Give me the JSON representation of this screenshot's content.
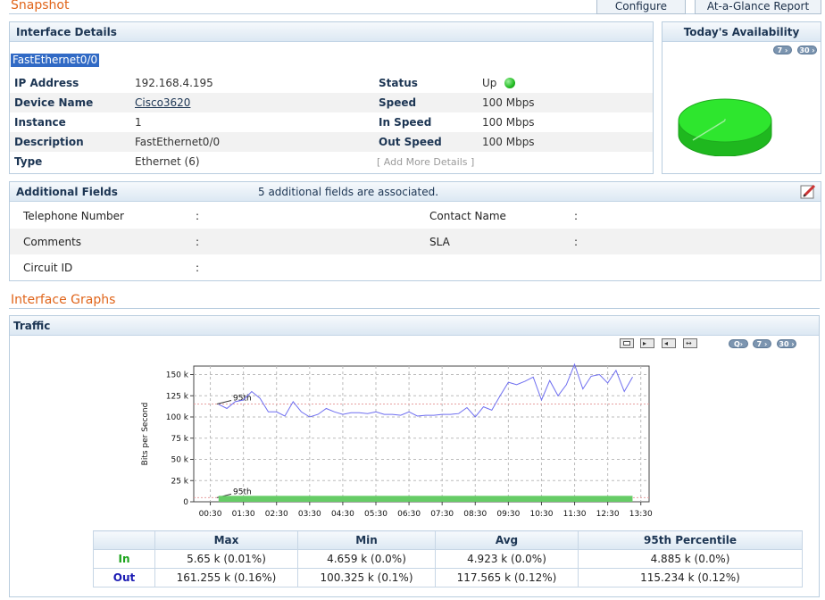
{
  "page": {
    "title": "Snapshot",
    "tabs": [
      "Configure",
      "At-a-Glance Report"
    ]
  },
  "interface_details": {
    "header": "Interface Details",
    "name": "FastEthernet0/0",
    "left": [
      {
        "label": "IP Address",
        "value": "192.168.4.195"
      },
      {
        "label": "Device Name",
        "value": "Cisco3620"
      },
      {
        "label": "Instance",
        "value": "1"
      },
      {
        "label": "Description",
        "value": "FastEthernet0/0"
      },
      {
        "label": "Type",
        "value": "Ethernet (6)"
      }
    ],
    "right": [
      {
        "label": "Status",
        "value": "Up"
      },
      {
        "label": "Speed",
        "value": "100 Mbps"
      },
      {
        "label": "In Speed",
        "value": "100 Mbps"
      },
      {
        "label": "Out Speed",
        "value": "100 Mbps"
      }
    ],
    "add_more": "[ Add More Details  ]",
    "status_color": "#22bb22"
  },
  "availability": {
    "header": "Today's Availability",
    "buttons": [
      "7",
      "30"
    ],
    "color": "#2ee62e",
    "up_percent": 100
  },
  "additional_fields": {
    "header": "Additional Fields",
    "summary": "5 additional fields are associated.",
    "rows": [
      {
        "l_label": "Telephone Number",
        "l_sep": ":",
        "r_label": "Contact Name",
        "r_sep": ":"
      },
      {
        "l_label": "Comments",
        "l_sep": ":",
        "r_label": "SLA",
        "r_sep": ":"
      },
      {
        "l_label": "Circuit ID",
        "l_sep": ":",
        "r_label": "",
        "r_sep": ""
      }
    ]
  },
  "graphs": {
    "section_title": "Interface Graphs",
    "traffic_header": "Traffic",
    "toolbar_icons": [
      "table-view-icon",
      "export-icon",
      "zoom-prev-icon",
      "zoom-fit-icon"
    ],
    "range_buttons": [
      "Q",
      "7",
      "30"
    ]
  },
  "chart_data": {
    "type": "line",
    "xlabel": "",
    "ylabel": "Bits per Second",
    "ylim": [
      0,
      160000
    ],
    "yticks": [
      {
        "value": 0,
        "label": "0"
      },
      {
        "value": 25000,
        "label": "25 k"
      },
      {
        "value": 50000,
        "label": "50 k"
      },
      {
        "value": 75000,
        "label": "75 k"
      },
      {
        "value": 100000,
        "label": "100 k"
      },
      {
        "value": 125000,
        "label": "125 k"
      },
      {
        "value": 150000,
        "label": "150 k"
      }
    ],
    "xlim": [
      "00:00",
      "13:45"
    ],
    "xticks": [
      "00:30",
      "01:30",
      "02:30",
      "03:30",
      "04:30",
      "05:30",
      "06:30",
      "07:30",
      "08:30",
      "09:30",
      "10:30",
      "11:30",
      "12:30",
      "13:30"
    ],
    "series": [
      {
        "name": "Out",
        "color": "#6e6ef0",
        "x": [
          "00:45",
          "01:00",
          "01:15",
          "01:30",
          "01:45",
          "02:00",
          "02:15",
          "02:30",
          "02:45",
          "03:00",
          "03:15",
          "03:30",
          "03:45",
          "04:00",
          "04:15",
          "04:30",
          "04:45",
          "05:00",
          "05:15",
          "05:30",
          "05:45",
          "06:00",
          "06:15",
          "06:30",
          "06:45",
          "07:00",
          "07:15",
          "07:30",
          "07:45",
          "08:00",
          "08:15",
          "08:30",
          "08:45",
          "09:00",
          "09:15",
          "09:30",
          "09:45",
          "10:00",
          "10:15",
          "10:30",
          "10:45",
          "11:00",
          "11:15",
          "11:30",
          "11:45",
          "12:00",
          "12:15",
          "12:30",
          "12:45",
          "13:00",
          "13:15"
        ],
        "y": [
          115000,
          110000,
          118000,
          120000,
          130000,
          122000,
          106000,
          106000,
          101000,
          118000,
          106000,
          100000,
          103000,
          110000,
          106000,
          103000,
          105000,
          105000,
          104000,
          106000,
          103000,
          103000,
          102000,
          106000,
          101000,
          102000,
          102000,
          103000,
          103000,
          104000,
          111000,
          100000,
          112000,
          108000,
          125000,
          141000,
          138000,
          142000,
          147000,
          120000,
          143000,
          125000,
          138000,
          162000,
          133000,
          148000,
          150000,
          140000,
          155000,
          130000,
          147000
        ]
      },
      {
        "name": "In",
        "color": "#66cc66",
        "x": [
          "00:45",
          "13:15"
        ],
        "y": [
          4900,
          4900
        ]
      }
    ],
    "percentile_lines": [
      {
        "label": "95th",
        "value": 115234
      },
      {
        "label": "95th",
        "value": 4885
      }
    ]
  },
  "stats_table": {
    "headers": [
      "Max",
      "Min",
      "Avg",
      "95th Percentile"
    ],
    "rows": [
      {
        "name": "In",
        "color": "#1aa31a",
        "values": [
          "5.65 k  (0.01%)",
          "4.659 k  (0.0%)",
          "4.923 k  (0.0%)",
          "4.885 k  (0.0%)"
        ]
      },
      {
        "name": "Out",
        "color": "#1a1ab3",
        "values": [
          "161.255 k  (0.16%)",
          "100.325 k  (0.1%)",
          "117.565 k  (0.12%)",
          "115.234 k  (0.12%)"
        ]
      }
    ]
  }
}
